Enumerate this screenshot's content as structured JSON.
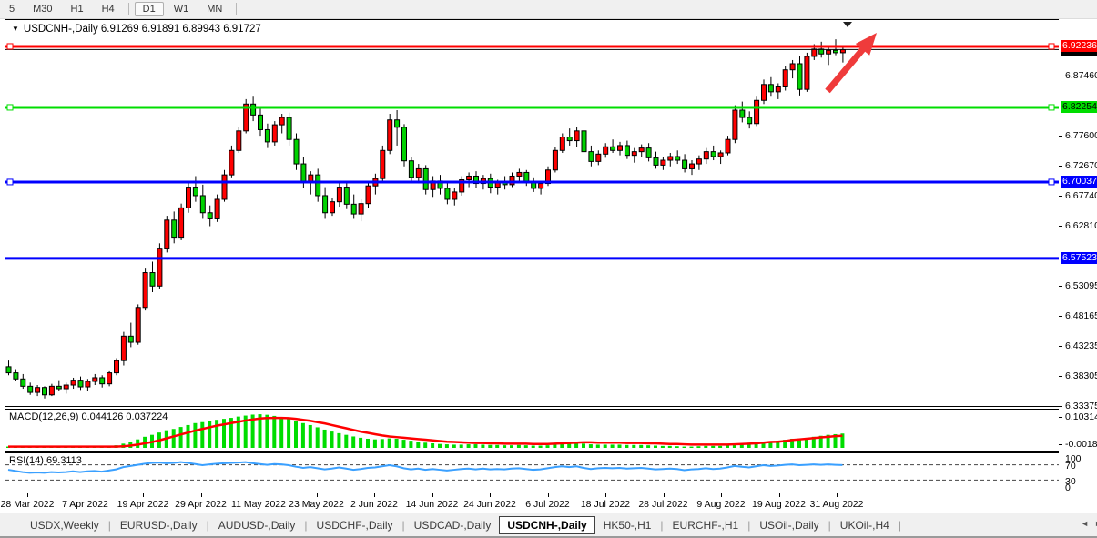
{
  "toolbar": {
    "items": [
      {
        "label": "5",
        "type": "btn"
      },
      {
        "label": "M30",
        "type": "btn"
      },
      {
        "label": "H1",
        "type": "btn"
      },
      {
        "label": "H4",
        "type": "btn"
      },
      {
        "type": "sep"
      },
      {
        "label": "D1",
        "type": "btn",
        "active": true
      },
      {
        "label": "W1",
        "type": "btn"
      },
      {
        "label": "MN",
        "type": "btn"
      },
      {
        "type": "sep"
      }
    ]
  },
  "chart": {
    "symbol": "USDCNH-,Daily",
    "ohlc": "6.91269 6.91891 6.89943 6.91727",
    "dropdown_icon": "▼"
  },
  "colors": {
    "bull": "#ff0000",
    "bear": "#00d200",
    "wick": "#000000",
    "resistance": "#ff0000",
    "support_green": "#00dd00",
    "support_blue": "#0000ff",
    "current_price_line": "#000000",
    "macd_hist": "#00dd00",
    "macd_signal": "#ff0000",
    "rsi_line": "#3aa0ff",
    "annotation_arrow": "#ef3b3b"
  },
  "chart_data": [
    {
      "type": "candlestick",
      "title": "USDCNH-,Daily",
      "ylim": [
        6.33375,
        6.9655
      ],
      "grid": false,
      "current_price": 6.91727,
      "levels": [
        {
          "value": 6.92236,
          "color": "#ff0000",
          "handles": true,
          "label": "6.92236"
        },
        {
          "value": 6.82254,
          "color": "#00dd00",
          "handles": true,
          "label": "6.82254"
        },
        {
          "value": 6.70037,
          "color": "#0000ff",
          "handles": true,
          "label": "6.70037"
        },
        {
          "value": 6.57523,
          "color": "#0000ff",
          "handles": false,
          "label": "6.57523"
        }
      ],
      "y_ticks": [
        "6.87460",
        "6.77600",
        "6.72670",
        "6.67740",
        "6.62810",
        "6.53095",
        "6.48165",
        "6.43235",
        "6.38305",
        "6.33375"
      ],
      "x_labels": [
        "28 Mar 2022",
        "7 Apr 2022",
        "19 Apr 2022",
        "29 Apr 2022",
        "11 May 2022",
        "23 May 2022",
        "2 Jun 2022",
        "14 Jun 2022",
        "24 Jun 2022",
        "6 Jul 2022",
        "18 Jul 2022",
        "28 Jul 2022",
        "9 Aug 2022",
        "19 Aug 2022",
        "31 Aug 2022"
      ],
      "candles": [
        [
          6.398,
          6.408,
          6.384,
          6.388
        ],
        [
          6.388,
          6.394,
          6.374,
          6.378
        ],
        [
          6.378,
          6.386,
          6.362,
          6.366
        ],
        [
          6.366,
          6.372,
          6.352,
          6.356
        ],
        [
          6.356,
          6.368,
          6.35,
          6.364
        ],
        [
          6.364,
          6.366,
          6.346,
          6.352
        ],
        [
          6.352,
          6.37,
          6.35,
          6.366
        ],
        [
          6.366,
          6.376,
          6.358,
          6.362
        ],
        [
          6.362,
          6.372,
          6.354,
          6.368
        ],
        [
          6.368,
          6.38,
          6.362,
          6.376
        ],
        [
          6.376,
          6.382,
          6.36,
          6.365
        ],
        [
          6.365,
          6.378,
          6.358,
          6.374
        ],
        [
          6.374,
          6.386,
          6.368,
          6.38
        ],
        [
          6.38,
          6.384,
          6.364,
          6.37
        ],
        [
          6.37,
          6.392,
          6.366,
          6.388
        ],
        [
          6.388,
          6.412,
          6.384,
          6.408
        ],
        [
          6.408,
          6.455,
          6.4,
          6.448
        ],
        [
          6.448,
          6.47,
          6.43,
          6.438
        ],
        [
          6.438,
          6.5,
          6.434,
          6.495
        ],
        [
          6.495,
          6.56,
          6.49,
          6.552
        ],
        [
          6.552,
          6.57,
          6.52,
          6.53
        ],
        [
          6.53,
          6.6,
          6.526,
          6.592
        ],
        [
          6.592,
          6.645,
          6.585,
          6.638
        ],
        [
          6.638,
          6.652,
          6.6,
          6.61
        ],
        [
          6.61,
          6.665,
          6.605,
          6.658
        ],
        [
          6.658,
          6.7,
          6.65,
          6.692
        ],
        [
          6.692,
          6.71,
          6.668,
          6.678
        ],
        [
          6.678,
          6.696,
          6.64,
          6.65
        ],
        [
          6.65,
          6.662,
          6.628,
          6.64
        ],
        [
          6.64,
          6.68,
          6.635,
          6.672
        ],
        [
          6.672,
          6.72,
          6.668,
          6.712
        ],
        [
          6.712,
          6.76,
          6.708,
          6.752
        ],
        [
          6.752,
          6.79,
          6.748,
          6.784
        ],
        [
          6.784,
          6.836,
          6.78,
          6.828
        ],
        [
          6.828,
          6.84,
          6.8,
          6.81
        ],
        [
          6.81,
          6.822,
          6.776,
          6.786
        ],
        [
          6.786,
          6.796,
          6.756,
          6.766
        ],
        [
          6.766,
          6.8,
          6.76,
          6.794
        ],
        [
          6.794,
          6.812,
          6.78,
          6.806
        ],
        [
          6.806,
          6.814,
          6.76,
          6.77
        ],
        [
          6.77,
          6.78,
          6.72,
          6.73
        ],
        [
          6.73,
          6.742,
          6.69,
          6.7
        ],
        [
          6.7,
          6.718,
          6.68,
          6.712
        ],
        [
          6.712,
          6.722,
          6.668,
          6.678
        ],
        [
          6.678,
          6.692,
          6.64,
          6.65
        ],
        [
          6.65,
          6.675,
          6.645,
          6.668
        ],
        [
          6.668,
          6.7,
          6.66,
          6.692
        ],
        [
          6.692,
          6.702,
          6.656,
          6.664
        ],
        [
          6.664,
          6.68,
          6.64,
          6.648
        ],
        [
          6.648,
          6.672,
          6.636,
          6.665
        ],
        [
          6.665,
          6.7,
          6.658,
          6.694
        ],
        [
          6.694,
          6.714,
          6.68,
          6.706
        ],
        [
          6.706,
          6.76,
          6.7,
          6.752
        ],
        [
          6.752,
          6.812,
          6.746,
          6.802
        ],
        [
          6.802,
          6.818,
          6.76,
          6.79
        ],
        [
          6.79,
          6.795,
          6.726,
          6.735
        ],
        [
          6.735,
          6.742,
          6.7,
          6.708
        ],
        [
          6.708,
          6.73,
          6.698,
          6.722
        ],
        [
          6.722,
          6.728,
          6.68,
          6.688
        ],
        [
          6.688,
          6.71,
          6.676,
          6.702
        ],
        [
          6.702,
          6.712,
          6.68,
          6.69
        ],
        [
          6.69,
          6.7,
          6.664,
          6.672
        ],
        [
          6.672,
          6.69,
          6.662,
          6.684
        ],
        [
          6.684,
          6.71,
          6.678,
          6.704
        ],
        [
          6.704,
          6.716,
          6.692,
          6.71
        ],
        [
          6.71,
          6.718,
          6.69,
          6.698
        ],
        [
          6.698,
          6.712,
          6.688,
          6.706
        ],
        [
          6.706,
          6.714,
          6.682,
          6.692
        ],
        [
          6.692,
          6.704,
          6.68,
          6.7
        ],
        [
          6.7,
          6.71,
          6.688,
          6.696
        ],
        [
          6.696,
          6.716,
          6.692,
          6.71
        ],
        [
          6.71,
          6.722,
          6.7,
          6.716
        ],
        [
          6.716,
          6.72,
          6.694,
          6.7
        ],
        [
          6.7,
          6.708,
          6.684,
          6.69
        ],
        [
          6.69,
          6.702,
          6.68,
          6.698
        ],
        [
          6.698,
          6.726,
          6.694,
          6.72
        ],
        [
          6.72,
          6.758,
          6.716,
          6.752
        ],
        [
          6.752,
          6.78,
          6.748,
          6.774
        ],
        [
          6.774,
          6.788,
          6.76,
          6.768
        ],
        [
          6.768,
          6.79,
          6.758,
          6.784
        ],
        [
          6.784,
          6.796,
          6.74,
          6.75
        ],
        [
          6.75,
          6.76,
          6.726,
          6.734
        ],
        [
          6.734,
          6.752,
          6.728,
          6.746
        ],
        [
          6.746,
          6.764,
          6.74,
          6.758
        ],
        [
          6.758,
          6.77,
          6.748,
          6.752
        ],
        [
          6.752,
          6.766,
          6.744,
          6.76
        ],
        [
          6.76,
          6.768,
          6.738,
          6.744
        ],
        [
          6.744,
          6.756,
          6.732,
          6.75
        ],
        [
          6.75,
          6.762,
          6.742,
          6.756
        ],
        [
          6.756,
          6.764,
          6.734,
          6.74
        ],
        [
          6.74,
          6.75,
          6.722,
          6.728
        ],
        [
          6.728,
          6.742,
          6.72,
          6.736
        ],
        [
          6.736,
          6.748,
          6.726,
          6.742
        ],
        [
          6.742,
          6.752,
          6.73,
          6.736
        ],
        [
          6.736,
          6.746,
          6.716,
          6.722
        ],
        [
          6.722,
          6.736,
          6.712,
          6.73
        ],
        [
          6.73,
          6.744,
          6.72,
          6.738
        ],
        [
          6.738,
          6.756,
          6.73,
          6.75
        ],
        [
          6.75,
          6.76,
          6.736,
          6.742
        ],
        [
          6.742,
          6.752,
          6.73,
          6.748
        ],
        [
          6.748,
          6.776,
          6.744,
          6.77
        ],
        [
          6.77,
          6.826,
          6.764,
          6.818
        ],
        [
          6.818,
          6.832,
          6.798,
          6.806
        ],
        [
          6.806,
          6.816,
          6.788,
          6.796
        ],
        [
          6.796,
          6.84,
          6.792,
          6.834
        ],
        [
          6.834,
          6.868,
          6.828,
          6.86
        ],
        [
          6.86,
          6.872,
          6.84,
          6.848
        ],
        [
          6.848,
          6.862,
          6.836,
          6.856
        ],
        [
          6.856,
          6.89,
          6.85,
          6.884
        ],
        [
          6.884,
          6.9,
          6.87,
          6.894
        ],
        [
          6.894,
          6.906,
          6.842,
          6.852
        ],
        [
          6.852,
          6.912,
          6.848,
          6.906
        ],
        [
          6.906,
          6.926,
          6.9,
          6.918
        ],
        [
          6.918,
          6.93,
          6.904,
          6.91
        ],
        [
          6.91,
          6.922,
          6.892,
          6.916
        ],
        [
          6.916,
          6.934,
          6.908,
          6.912
        ],
        [
          6.912,
          6.922,
          6.896,
          6.917
        ]
      ]
    },
    {
      "type": "bar",
      "title": "MACD(12,26,9)",
      "values_label": "0.044126 0.037224",
      "ylim": [
        -0.0084,
        0.1173
      ],
      "y_tick_labels": [
        "0.103149",
        "-0.00180"
      ],
      "histogram": [
        0.004,
        0.0045,
        0.004,
        0.0042,
        0.0044,
        0.004,
        0.0038,
        0.004,
        0.0042,
        0.004,
        0.0044,
        0.0046,
        0.0048,
        0.005,
        0.0055,
        0.008,
        0.013,
        0.019,
        0.026,
        0.034,
        0.04,
        0.047,
        0.054,
        0.058,
        0.064,
        0.07,
        0.076,
        0.079,
        0.082,
        0.086,
        0.089,
        0.092,
        0.096,
        0.099,
        0.102,
        0.1031,
        0.1015,
        0.098,
        0.094,
        0.089,
        0.083,
        0.076,
        0.07,
        0.063,
        0.056,
        0.05,
        0.045,
        0.04,
        0.035,
        0.031,
        0.028,
        0.026,
        0.027,
        0.029,
        0.028,
        0.025,
        0.022,
        0.019,
        0.016,
        0.014,
        0.012,
        0.011,
        0.01,
        0.01,
        0.011,
        0.011,
        0.01,
        0.009,
        0.009,
        0.008,
        0.008,
        0.009,
        0.008,
        0.007,
        0.007,
        0.008,
        0.01,
        0.012,
        0.013,
        0.014,
        0.013,
        0.011,
        0.01,
        0.01,
        0.01,
        0.01,
        0.009,
        0.009,
        0.009,
        0.008,
        0.007,
        0.006,
        0.006,
        0.005,
        0.004,
        0.004,
        0.005,
        0.006,
        0.006,
        0.006,
        0.008,
        0.012,
        0.014,
        0.014,
        0.016,
        0.019,
        0.021,
        0.022,
        0.025,
        0.028,
        0.028,
        0.03,
        0.034,
        0.037,
        0.04,
        0.042,
        0.044
      ],
      "signal": [
        0.004,
        0.004,
        0.004,
        0.004,
        0.004,
        0.004,
        0.004,
        0.004,
        0.004,
        0.004,
        0.004,
        0.004,
        0.004,
        0.004,
        0.004,
        0.004,
        0.005,
        0.007,
        0.01,
        0.014,
        0.018,
        0.023,
        0.029,
        0.035,
        0.041,
        0.047,
        0.053,
        0.058,
        0.063,
        0.068,
        0.072,
        0.076,
        0.08,
        0.084,
        0.087,
        0.09,
        0.0915,
        0.092,
        0.0918,
        0.091,
        0.089,
        0.086,
        0.083,
        0.079,
        0.075,
        0.07,
        0.065,
        0.06,
        0.055,
        0.05,
        0.046,
        0.042,
        0.038,
        0.035,
        0.033,
        0.031,
        0.029,
        0.027,
        0.025,
        0.023,
        0.021,
        0.019,
        0.018,
        0.017,
        0.016,
        0.015,
        0.015,
        0.014,
        0.014,
        0.013,
        0.013,
        0.013,
        0.013,
        0.012,
        0.012,
        0.012,
        0.013,
        0.014,
        0.015,
        0.016,
        0.017,
        0.017,
        0.016,
        0.016,
        0.016,
        0.016,
        0.015,
        0.015,
        0.015,
        0.014,
        0.014,
        0.013,
        0.012,
        0.012,
        0.011,
        0.01,
        0.01,
        0.01,
        0.01,
        0.01,
        0.01,
        0.011,
        0.012,
        0.013,
        0.014,
        0.016,
        0.018,
        0.019,
        0.021,
        0.024,
        0.026,
        0.028,
        0.03,
        0.032,
        0.034,
        0.036,
        0.037
      ]
    },
    {
      "type": "line",
      "title": "RSI(14)",
      "value_label": "69.3113",
      "ylim": [
        0,
        100
      ],
      "levels": [
        70,
        30
      ],
      "y_tick_labels": [
        "100",
        "70",
        "30",
        "0"
      ],
      "values": [
        57,
        54,
        51,
        49,
        50,
        49,
        51,
        50,
        51,
        53,
        51,
        53,
        54,
        52,
        55,
        58,
        64,
        67,
        70,
        73,
        75,
        76,
        74,
        75,
        77,
        75,
        72,
        69,
        71,
        73,
        74,
        75,
        76,
        77,
        74,
        72,
        70,
        72,
        71,
        69,
        65,
        62,
        64,
        61,
        58,
        60,
        63,
        60,
        57,
        59,
        62,
        63,
        66,
        69,
        66,
        61,
        58,
        60,
        57,
        59,
        57,
        55,
        57,
        59,
        60,
        58,
        60,
        58,
        59,
        58,
        60,
        61,
        59,
        57,
        58,
        61,
        64,
        66,
        64,
        66,
        62,
        59,
        61,
        62,
        61,
        62,
        60,
        61,
        62,
        60,
        58,
        59,
        60,
        59,
        56,
        58,
        59,
        61,
        59,
        60,
        63,
        67,
        65,
        63,
        66,
        69,
        67,
        68,
        70,
        71,
        69,
        70,
        71,
        70,
        71,
        70,
        69.3
      ]
    }
  ],
  "price_axis_badges": [
    {
      "value": "6.91727",
      "bg": "#000000",
      "fg": "#ffffff",
      "kind": "current-price"
    },
    {
      "value": "6.92236",
      "bg": "#ff0000",
      "fg": "#ffffff",
      "kind": "level"
    },
    {
      "value": "6.82254",
      "bg": "#00dd00",
      "fg": "#000000",
      "kind": "level"
    },
    {
      "value": "6.70037",
      "bg": "#0000ff",
      "fg": "#ffffff",
      "kind": "level"
    },
    {
      "value": "6.57523",
      "bg": "#0000ff",
      "fg": "#ffffff",
      "kind": "level"
    }
  ],
  "tabs": {
    "items": [
      {
        "label": "USDX,Weekly"
      },
      {
        "label": "EURUSD-,Daily"
      },
      {
        "label": "AUDUSD-,Daily"
      },
      {
        "label": "USDCHF-,Daily"
      },
      {
        "label": "USDCAD-,Daily"
      },
      {
        "label": "USDCNH-,Daily",
        "active": true
      },
      {
        "label": "HK50-,H1"
      },
      {
        "label": "EURCHF-,H1"
      },
      {
        "label": "USOil-,Daily"
      },
      {
        "label": "UKOil-,H4"
      }
    ],
    "left_arrow": "◄",
    "right_arrow": "►"
  }
}
